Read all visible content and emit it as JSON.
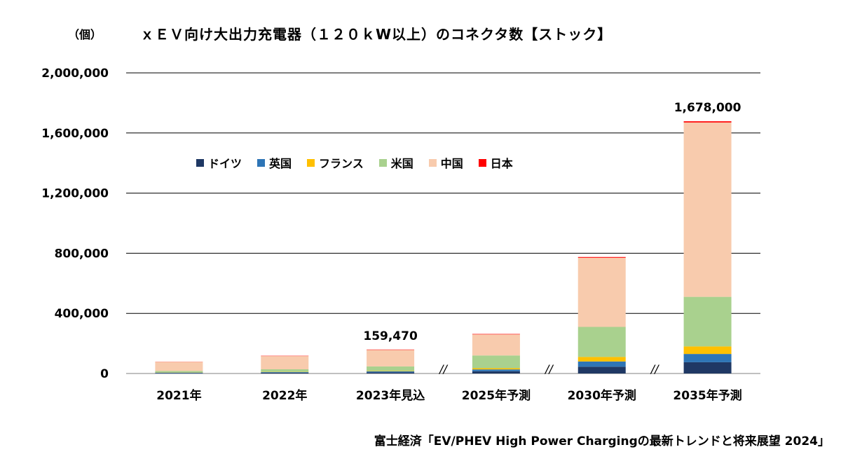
{
  "unit_label": "（個）",
  "title": "ｘＥＶ向け大出力充電器（１２０ｋW以上）のコネクタ数【ストック】",
  "source": "富士経済「EV/PHEV High Power Chargingの最新トレンドと将来展望 2024」",
  "legend_items": [
    "ドイツ",
    "英国",
    "フランス",
    "米国",
    "中国",
    "日本"
  ],
  "colors": {
    "ドイツ": "#1f3864",
    "英国": "#2e75b6",
    "フランス": "#ffc000",
    "米国": "#a9d18e",
    "中国": "#f8cbad",
    "日本": "#ff0000"
  },
  "chart_data": {
    "type": "bar",
    "stacked": true,
    "title": "ｘＥＶ向け大出力充電器（１２０ｋW以上）のコネクタ数【ストック】",
    "ylabel": "（個）",
    "ylim": [
      0,
      2000000
    ],
    "yticks": [
      "0",
      "400,000",
      "800,000",
      "1,200,000",
      "1,600,000",
      "2,000,000"
    ],
    "yticks_values": [
      0,
      400000,
      800000,
      1200000,
      1600000,
      2000000
    ],
    "categories": [
      "2021年",
      "2022年",
      "2023年見込",
      "2025年予測",
      "2030年予測",
      "2035年予測"
    ],
    "series": [
      {
        "name": "ドイツ",
        "values": [
          3000,
          5000,
          8000,
          15000,
          45000,
          75000
        ]
      },
      {
        "name": "英国",
        "values": [
          3000,
          4000,
          6000,
          12000,
          35000,
          55000
        ]
      },
      {
        "name": "フランス",
        "values": [
          1000,
          2000,
          3000,
          8000,
          30000,
          50000
        ]
      },
      {
        "name": "米国",
        "values": [
          10000,
          17000,
          30000,
          85000,
          200000,
          330000
        ]
      },
      {
        "name": "中国",
        "values": [
          60000,
          88000,
          110000,
          140000,
          460000,
          1160000
        ]
      },
      {
        "name": "日本",
        "values": [
          1000,
          2000,
          2470,
          3000,
          5000,
          8000
        ]
      }
    ],
    "data_labels": {
      "2023年見込": "159,470",
      "2035年予測": "1,678,000"
    },
    "axis_break_marks": [
      "//",
      "//",
      "//"
    ],
    "grid": true,
    "legend_position": "inside-top-left"
  }
}
